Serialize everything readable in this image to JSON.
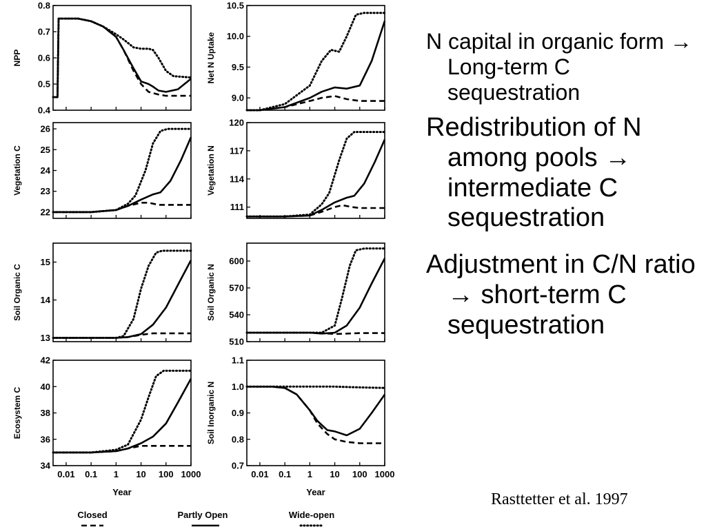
{
  "text": {
    "bullets": [
      {
        "before": "N capital in organic form",
        "arrow": "→",
        "after": " Long-term C sequestration"
      },
      {
        "before": "Redistribution of N among pools",
        "arrow": "→",
        "after": " intermediate C sequestration"
      },
      {
        "before": "Adjustment in C/N ratio",
        "arrow": "→",
        "after": " short-term C sequestration"
      }
    ],
    "citation": "Rasttetter et al. 1997"
  },
  "chart_data": {
    "type": "line",
    "x_scale": "log",
    "x_range": [
      0.003,
      1000
    ],
    "x_ticks": [
      0.01,
      0.1,
      1,
      10,
      100,
      1000
    ],
    "x_tick_labels": [
      "0.01",
      "0.1",
      "1",
      "10",
      "100",
      "1000"
    ],
    "xlabel": "Year",
    "legend": {
      "placement": "bottom",
      "entries": [
        {
          "name": "Closed",
          "style": "dashed"
        },
        {
          "name": "Partly Open",
          "style": "solid"
        },
        {
          "name": "Wide-open",
          "style": "dotted"
        }
      ]
    },
    "panels": [
      {
        "id": "npp",
        "ylabel": "NPP",
        "ylim": [
          0.4,
          0.8
        ],
        "yticks": [
          0.4,
          0.5,
          0.6,
          0.7,
          0.8
        ],
        "ytick_labels": [
          "0.4",
          "0.5",
          "0.6",
          "0.7",
          "0.8"
        ],
        "series": [
          {
            "name": "Closed",
            "style": "dashed",
            "x": [
              0.003,
              0.0045,
              0.005,
              0.01,
              0.03,
              0.1,
              0.3,
              1,
              2,
              5,
              10,
              20,
              50,
              100,
              300,
              1000
            ],
            "y": [
              0.45,
              0.45,
              0.75,
              0.75,
              0.75,
              0.74,
              0.72,
              0.68,
              0.63,
              0.55,
              0.5,
              0.47,
              0.46,
              0.455,
              0.455,
              0.455
            ]
          },
          {
            "name": "Partly Open",
            "style": "solid",
            "x": [
              0.003,
              0.0045,
              0.005,
              0.01,
              0.03,
              0.1,
              0.3,
              1,
              2,
              5,
              10,
              20,
              30,
              50,
              100,
              300,
              1000
            ],
            "y": [
              0.45,
              0.45,
              0.75,
              0.75,
              0.75,
              0.74,
              0.72,
              0.68,
              0.63,
              0.56,
              0.51,
              0.5,
              0.49,
              0.475,
              0.47,
              0.48,
              0.52
            ]
          },
          {
            "name": "Wide-open",
            "style": "dotted",
            "x": [
              0.003,
              0.0045,
              0.005,
              0.01,
              0.03,
              0.1,
              0.3,
              1,
              2,
              5,
              10,
              20,
              30,
              50,
              100,
              200,
              1000
            ],
            "y": [
              0.45,
              0.45,
              0.75,
              0.75,
              0.75,
              0.74,
              0.72,
              0.69,
              0.67,
              0.64,
              0.635,
              0.635,
              0.63,
              0.6,
              0.55,
              0.53,
              0.525
            ]
          }
        ]
      },
      {
        "id": "net-n-uptake",
        "ylabel": "Net N Uptake",
        "ylim": [
          8.8,
          10.5
        ],
        "yticks": [
          9.0,
          9.5,
          10.0,
          10.5
        ],
        "ytick_labels": [
          "9.0",
          "9.5",
          "10.0",
          "10.5"
        ],
        "series": [
          {
            "name": "Closed",
            "style": "dashed",
            "x": [
              0.003,
              0.01,
              0.1,
              1,
              3,
              10,
              30,
              100,
              1000
            ],
            "y": [
              8.8,
              8.8,
              8.85,
              8.95,
              9.0,
              9.03,
              8.98,
              8.95,
              8.95
            ]
          },
          {
            "name": "Partly Open",
            "style": "solid",
            "x": [
              0.003,
              0.01,
              0.1,
              1,
              3,
              10,
              30,
              100,
              300,
              1000
            ],
            "y": [
              8.8,
              8.8,
              8.85,
              9.0,
              9.1,
              9.17,
              9.15,
              9.2,
              9.6,
              10.25
            ]
          },
          {
            "name": "Wide-open",
            "style": "dotted",
            "x": [
              0.003,
              0.01,
              0.1,
              1,
              3,
              7,
              15,
              30,
              70,
              150,
              1000
            ],
            "y": [
              8.8,
              8.8,
              8.9,
              9.2,
              9.6,
              9.78,
              9.75,
              10.0,
              10.35,
              10.38,
              10.38
            ]
          }
        ]
      },
      {
        "id": "vegetation-c",
        "ylabel": "Vegetation C",
        "ylim": [
          21.7,
          26.3
        ],
        "yticks": [
          22,
          23,
          24,
          25,
          26
        ],
        "ytick_labels": [
          "22",
          "23",
          "24",
          "25",
          "26"
        ],
        "series": [
          {
            "name": "Closed",
            "style": "dashed",
            "x": [
              0.003,
              0.1,
              1,
              3,
              10,
              20,
              50,
              100,
              1000
            ],
            "y": [
              22,
              22,
              22.1,
              22.3,
              22.45,
              22.45,
              22.35,
              22.35,
              22.35
            ]
          },
          {
            "name": "Partly Open",
            "style": "solid",
            "x": [
              0.003,
              0.1,
              1,
              3,
              10,
              30,
              60,
              150,
              400,
              1000
            ],
            "y": [
              22,
              22,
              22.1,
              22.3,
              22.6,
              22.85,
              22.95,
              23.5,
              24.5,
              25.6
            ]
          },
          {
            "name": "Wide-open",
            "style": "dotted",
            "x": [
              0.003,
              0.1,
              1,
              3,
              6,
              15,
              30,
              60,
              120,
              1000
            ],
            "y": [
              22,
              22,
              22.1,
              22.4,
              22.8,
              24.0,
              25.3,
              25.9,
              26.0,
              26.0
            ]
          }
        ]
      },
      {
        "id": "vegetation-n",
        "ylabel": "Vegetation N",
        "ylim": [
          109.8,
          120
        ],
        "yticks": [
          111,
          114,
          117,
          120
        ],
        "ytick_labels": [
          "111",
          "114",
          "117",
          "120"
        ],
        "series": [
          {
            "name": "Closed",
            "style": "dashed",
            "x": [
              0.003,
              0.1,
              1,
              3,
              10,
              20,
              50,
              100,
              1000
            ],
            "y": [
              110,
              110,
              110.1,
              110.5,
              111.0,
              111.2,
              111.0,
              110.9,
              110.9
            ]
          },
          {
            "name": "Partly Open",
            "style": "solid",
            "x": [
              0.003,
              0.1,
              1,
              3,
              10,
              30,
              60,
              150,
              400,
              1000
            ],
            "y": [
              110,
              110,
              110.1,
              110.7,
              111.5,
              112.0,
              112.2,
              113.5,
              115.8,
              118.2
            ]
          },
          {
            "name": "Wide-open",
            "style": "dotted",
            "x": [
              0.003,
              0.1,
              1,
              3,
              6,
              15,
              30,
              60,
              120,
              1000
            ],
            "y": [
              110,
              110,
              110.2,
              111.3,
              112.5,
              116.0,
              118.3,
              119.0,
              119.0,
              119.0
            ]
          }
        ]
      },
      {
        "id": "soil-organic-c",
        "ylabel": "Soil Organic C",
        "ylim": [
          12.9,
          15.5
        ],
        "yticks": [
          13,
          14,
          15
        ],
        "ytick_labels": [
          "13",
          "14",
          "15"
        ],
        "series": [
          {
            "name": "Closed",
            "style": "dashed",
            "x": [
              0.003,
              1,
              3,
              10,
              30,
              100,
              1000
            ],
            "y": [
              13.0,
              13.0,
              13.02,
              13.08,
              13.12,
              13.12,
              13.12
            ]
          },
          {
            "name": "Partly Open",
            "style": "solid",
            "x": [
              0.003,
              1,
              3,
              10,
              30,
              100,
              300,
              1000
            ],
            "y": [
              13.0,
              13.0,
              13.02,
              13.1,
              13.35,
              13.8,
              14.4,
              15.05
            ]
          },
          {
            "name": "Wide-open",
            "style": "dotted",
            "x": [
              0.003,
              1,
              2,
              5,
              10,
              20,
              40,
              70,
              1000
            ],
            "y": [
              13.0,
              13.0,
              13.05,
              13.5,
              14.3,
              14.9,
              15.25,
              15.3,
              15.3
            ]
          }
        ]
      },
      {
        "id": "soil-organic-n",
        "ylabel": "Soil Organic N",
        "ylim": [
          510,
          620
        ],
        "yticks": [
          510,
          540,
          570,
          600
        ],
        "ytick_labels": [
          "510",
          "540",
          "570",
          "600"
        ],
        "series": [
          {
            "name": "Closed",
            "style": "dashed",
            "x": [
              0.003,
              1,
              3,
              10,
              30,
              100,
              1000
            ],
            "y": [
              520,
              520,
              519.5,
              518.5,
              519,
              519.5,
              519.5
            ]
          },
          {
            "name": "Partly Open",
            "style": "solid",
            "x": [
              0.003,
              1,
              3,
              10,
              30,
              100,
              300,
              1000
            ],
            "y": [
              520,
              520,
              519,
              520,
              528,
              548,
              575,
              603
            ]
          },
          {
            "name": "Wide-open",
            "style": "dotted",
            "x": [
              0.003,
              1,
              3,
              10,
              20,
              40,
              70,
              150,
              1000
            ],
            "y": [
              520,
              520,
              520,
              528,
              560,
              595,
              612,
              614,
              614
            ]
          }
        ]
      },
      {
        "id": "ecosystem-c",
        "ylabel": "Ecosystem C",
        "ylim": [
          34,
          42
        ],
        "yticks": [
          34,
          36,
          38,
          40,
          42
        ],
        "ytick_labels": [
          "34",
          "36",
          "38",
          "40",
          "42"
        ],
        "series": [
          {
            "name": "Closed",
            "style": "dashed",
            "x": [
              0.003,
              0.1,
              1,
              3,
              10,
              30,
              100,
              1000
            ],
            "y": [
              35,
              35,
              35.1,
              35.3,
              35.5,
              35.5,
              35.5,
              35.5
            ]
          },
          {
            "name": "Partly Open",
            "style": "solid",
            "x": [
              0.003,
              0.1,
              1,
              3,
              10,
              30,
              100,
              300,
              1000
            ],
            "y": [
              35,
              35,
              35.1,
              35.3,
              35.7,
              36.2,
              37.2,
              38.8,
              40.6
            ]
          },
          {
            "name": "Wide-open",
            "style": "dotted",
            "x": [
              0.003,
              0.1,
              1,
              3,
              10,
              20,
              40,
              80,
              1000
            ],
            "y": [
              35,
              35,
              35.2,
              35.6,
              37.5,
              39.2,
              40.8,
              41.2,
              41.2
            ]
          }
        ]
      },
      {
        "id": "soil-inorganic-n",
        "ylabel": "Soil Inorganic N",
        "ylim": [
          0.7,
          1.1
        ],
        "yticks": [
          0.7,
          0.8,
          0.9,
          1.0,
          1.1
        ],
        "ytick_labels": [
          "0.7",
          "0.8",
          "0.9",
          "1.0",
          "1.1"
        ],
        "series": [
          {
            "name": "Closed",
            "style": "dashed",
            "x": [
              0.003,
              0.03,
              0.1,
              0.3,
              1,
              2,
              5,
              10,
              30,
              100,
              1000
            ],
            "y": [
              1.0,
              1.0,
              0.995,
              0.97,
              0.91,
              0.86,
              0.82,
              0.8,
              0.79,
              0.785,
              0.785
            ]
          },
          {
            "name": "Partly Open",
            "style": "solid",
            "x": [
              0.003,
              0.03,
              0.1,
              0.3,
              1,
              2,
              5,
              10,
              30,
              100,
              300,
              1000
            ],
            "y": [
              1.0,
              1.0,
              0.995,
              0.97,
              0.91,
              0.87,
              0.835,
              0.83,
              0.815,
              0.84,
              0.9,
              0.97
            ]
          },
          {
            "name": "Wide-open",
            "style": "dotted",
            "x": [
              0.003,
              1,
              10,
              100,
              1000
            ],
            "y": [
              1.0,
              1.0,
              1.0,
              0.997,
              0.995
            ]
          }
        ]
      }
    ]
  }
}
